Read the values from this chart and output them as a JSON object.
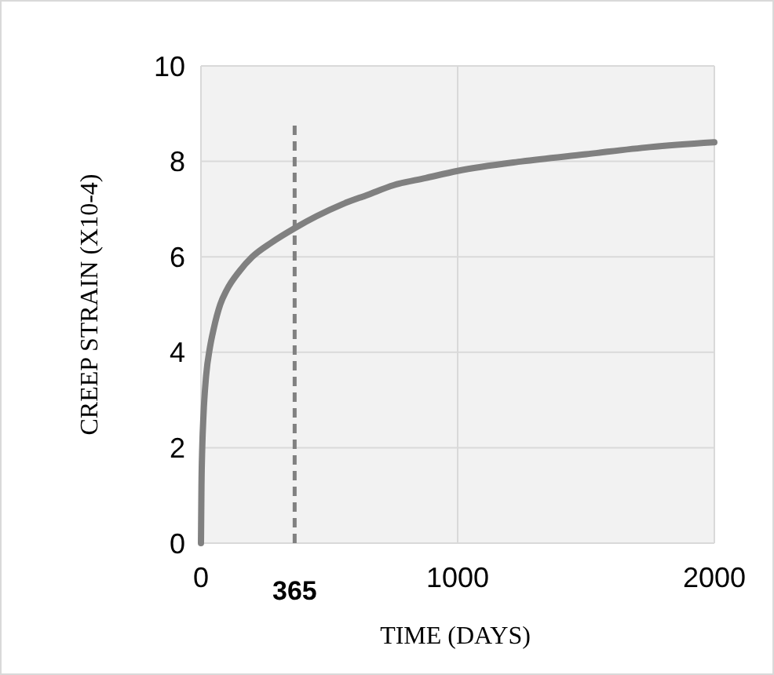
{
  "chart_data": {
    "type": "line",
    "xlabel": "TIME (DAYS)",
    "ylabel": "CREEP STRAIN (X10-4)",
    "x": [
      0,
      2,
      5,
      10,
      20,
      35,
      50,
      75,
      100,
      150,
      200,
      275,
      365,
      450,
      550,
      650,
      750,
      875,
      1000,
      1250,
      1500,
      1750,
      2000
    ],
    "series": [
      {
        "color": "#808080",
        "values": [
          0,
          1.2,
          2,
          2.7,
          3.5,
          4.1,
          4.5,
          5,
          5.3,
          5.7,
          6,
          6.3,
          6.6,
          6.85,
          7.1,
          7.3,
          7.5,
          7.65,
          7.8,
          8,
          8.15,
          8.3,
          8.4
        ]
      }
    ],
    "xlim": [
      0,
      2000
    ],
    "xticks": [
      0,
      1000,
      2000
    ],
    "ylim": [
      0,
      10
    ],
    "yticks": [
      0,
      2,
      4,
      6,
      8,
      10
    ],
    "grid": true,
    "marker": "none",
    "line_style": "solid",
    "ref_lines": [
      {
        "axis": "x",
        "value": 365,
        "label": "365",
        "line_style": "dashed",
        "color": "#808080"
      }
    ]
  }
}
